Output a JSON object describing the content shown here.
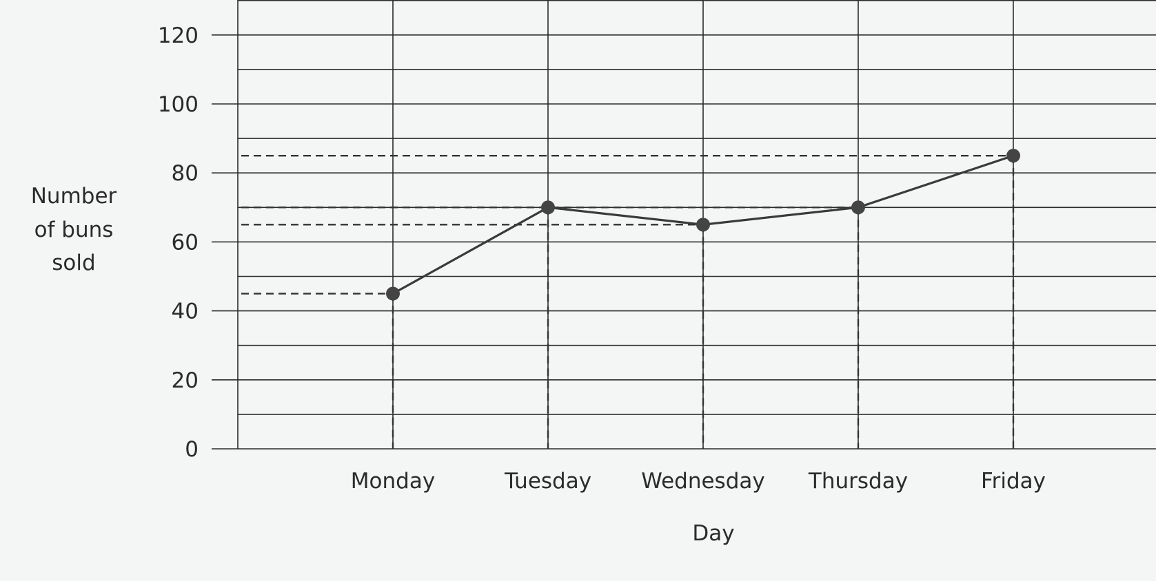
{
  "chart_data": {
    "type": "line",
    "xlabel": "Day",
    "ylabel_lines": [
      "Number",
      "of buns",
      "sold"
    ],
    "categories": [
      "Monday",
      "Tuesday",
      "Wednesday",
      "Thursday",
      "Friday"
    ],
    "series": [
      {
        "values": [
          45,
          70,
          65,
          70,
          85
        ]
      }
    ],
    "ylim": [
      0,
      130
    ],
    "y_ticks": [
      0,
      20,
      40,
      60,
      80,
      100,
      120
    ],
    "y_gridline_step": 10,
    "grid": true,
    "guide_lines": "dashed",
    "colors": {
      "line": "#3a3a3a",
      "marker": "#444444",
      "grid": "#2a2a2a",
      "background": "#f4f6f5"
    }
  }
}
